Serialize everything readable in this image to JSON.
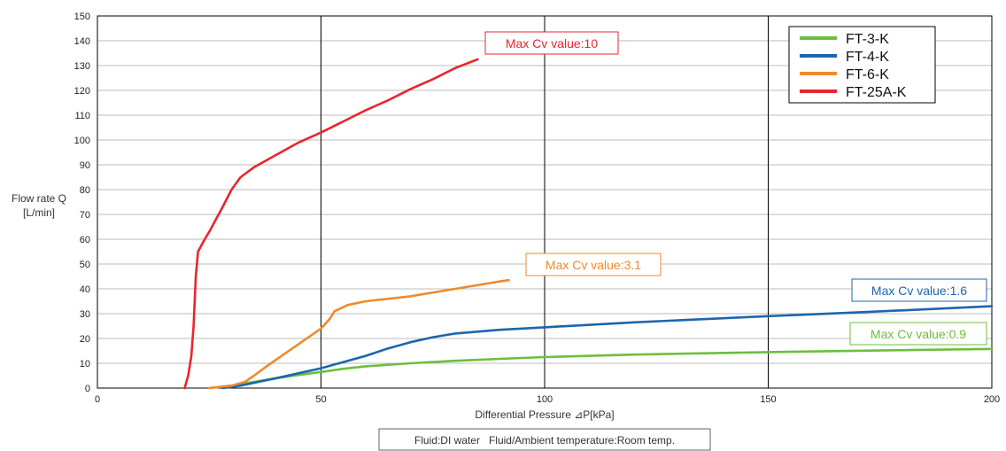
{
  "chart_data": {
    "type": "line",
    "xlabel": "Differential Pressure ⊿P[kPa]",
    "ylabel_line1": "Flow rate Q",
    "ylabel_line2": "[L/min]",
    "xlim": [
      0,
      200
    ],
    "ylim": [
      0,
      150
    ],
    "x_ticks": [
      0,
      50,
      100,
      150,
      200
    ],
    "y_ticks": [
      0,
      10,
      20,
      30,
      40,
      50,
      60,
      70,
      80,
      90,
      100,
      110,
      120,
      130,
      140,
      150
    ],
    "grid": true,
    "legend_position": "top-right",
    "series": [
      {
        "name": "FT-3-K",
        "color": "#6cbf3e",
        "points": [
          [
            25,
            0
          ],
          [
            30,
            1
          ],
          [
            35,
            2.5
          ],
          [
            40,
            4
          ],
          [
            45,
            5.3
          ],
          [
            50,
            6.5
          ],
          [
            55,
            7.8
          ],
          [
            60,
            8.8
          ],
          [
            70,
            10
          ],
          [
            80,
            11
          ],
          [
            90,
            11.8
          ],
          [
            100,
            12.5
          ],
          [
            120,
            13.5
          ],
          [
            150,
            14.5
          ],
          [
            180,
            15.3
          ],
          [
            200,
            15.8
          ]
        ]
      },
      {
        "name": "FT-4-K",
        "color": "#1c66ad",
        "points": [
          [
            28,
            0
          ],
          [
            32,
            1
          ],
          [
            36,
            2.5
          ],
          [
            40,
            4
          ],
          [
            45,
            6
          ],
          [
            50,
            8
          ],
          [
            55,
            10.5
          ],
          [
            60,
            13
          ],
          [
            65,
            16
          ],
          [
            70,
            18.5
          ],
          [
            75,
            20.5
          ],
          [
            80,
            22
          ],
          [
            90,
            23.5
          ],
          [
            100,
            24.5
          ],
          [
            120,
            26.5
          ],
          [
            150,
            29
          ],
          [
            170,
            30.5
          ],
          [
            200,
            33
          ]
        ]
      },
      {
        "name": "FT-6-K",
        "color": "#ef8a2a",
        "points": [
          [
            25,
            0
          ],
          [
            30,
            1
          ],
          [
            33,
            2.5
          ],
          [
            35,
            5
          ],
          [
            38,
            9
          ],
          [
            42,
            14
          ],
          [
            46,
            19
          ],
          [
            50,
            24
          ],
          [
            52,
            28
          ],
          [
            53,
            31
          ],
          [
            56,
            33.5
          ],
          [
            60,
            35
          ],
          [
            70,
            37
          ],
          [
            80,
            40
          ],
          [
            90,
            43
          ],
          [
            92,
            43.5
          ]
        ]
      },
      {
        "name": "FT-25A-K",
        "color": "#e8262c",
        "points": [
          [
            19.5,
            0
          ],
          [
            20.3,
            5
          ],
          [
            21,
            13
          ],
          [
            21.5,
            25
          ],
          [
            22,
            45
          ],
          [
            22.5,
            55
          ],
          [
            24,
            60
          ],
          [
            25,
            63
          ],
          [
            28,
            73
          ],
          [
            30,
            80
          ],
          [
            32,
            85
          ],
          [
            35,
            89
          ],
          [
            40,
            94
          ],
          [
            45,
            99
          ],
          [
            50,
            103
          ],
          [
            55,
            107.5
          ],
          [
            60,
            112
          ],
          [
            65,
            116
          ],
          [
            70,
            120.5
          ],
          [
            75,
            124.5
          ],
          [
            80,
            129
          ],
          [
            85,
            132.5
          ]
        ]
      }
    ],
    "annotations": [
      {
        "text": "Max Cv value:10",
        "color": "#e8262c"
      },
      {
        "text": "Max Cv value:3.1",
        "color": "#ef8a2a"
      },
      {
        "text": "Max Cv value:1.6",
        "color": "#1c66ad"
      },
      {
        "text": "Max Cv value:0.9",
        "color": "#6cbf3e"
      }
    ],
    "note": "Fluid:DI water   Fluid/Ambient temperature:Room temp."
  }
}
